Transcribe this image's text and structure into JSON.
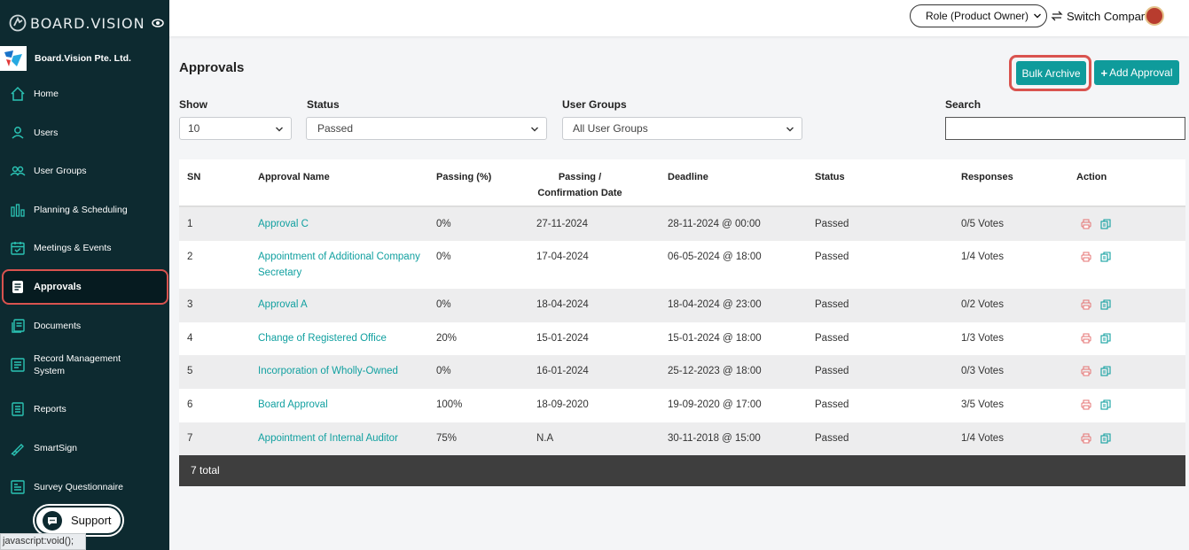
{
  "sidebar": {
    "brand": "BOARD.VISION",
    "company": "Board.Vision Pte. Ltd.",
    "items": [
      {
        "label": "Home"
      },
      {
        "label": "Users"
      },
      {
        "label": "User Groups"
      },
      {
        "label": "Planning & Scheduling"
      },
      {
        "label": "Meetings & Events"
      },
      {
        "label": "Approvals"
      },
      {
        "label": "Documents"
      },
      {
        "label": "Record Management System"
      },
      {
        "label": "Reports"
      },
      {
        "label": "SmartSign"
      },
      {
        "label": "Survey Questionnaire"
      }
    ],
    "support": "Support",
    "statusbar": "javascript:void();"
  },
  "topbar": {
    "role": "Role (Product Owner)",
    "switch_company": "Switch Company"
  },
  "page": {
    "title": "Approvals",
    "bulk_archive": "Bulk Archive",
    "add_approval": "Add Approval"
  },
  "filters": {
    "show_label": "Show",
    "show_value": "10",
    "status_label": "Status",
    "status_value": "Passed",
    "groups_label": "User Groups",
    "groups_value": "All User Groups",
    "search_label": "Search",
    "search_value": ""
  },
  "table": {
    "headers": {
      "sn": "SN",
      "name": "Approval Name",
      "passing": "Passing (%)",
      "date_line1": "Passing /",
      "date_line2": "Confirmation Date",
      "deadline": "Deadline",
      "status": "Status",
      "responses": "Responses",
      "action": "Action"
    },
    "rows": [
      {
        "sn": "1",
        "name": "Approval C",
        "passing": "0%",
        "date": "27-11-2024",
        "deadline": "28-11-2024 @ 00:00",
        "status": "Passed",
        "responses": "0/5 Votes"
      },
      {
        "sn": "2",
        "name": "Appointment of Additional Company Secretary",
        "passing": "0%",
        "date": "17-04-2024",
        "deadline": "06-05-2024 @ 18:00",
        "status": "Passed",
        "responses": "1/4 Votes"
      },
      {
        "sn": "3",
        "name": "Approval A",
        "passing": "0%",
        "date": "18-04-2024",
        "deadline": "18-04-2024 @ 23:00",
        "status": "Passed",
        "responses": "0/2 Votes"
      },
      {
        "sn": "4",
        "name": "Change of Registered Office",
        "passing": "20%",
        "date": "15-01-2024",
        "deadline": "15-01-2024 @ 18:00",
        "status": "Passed",
        "responses": "1/3 Votes"
      },
      {
        "sn": "5",
        "name": "Incorporation of Wholly-Owned",
        "passing": "0%",
        "date": "16-01-2024",
        "deadline": "25-12-2023 @ 18:00",
        "status": "Passed",
        "responses": "0/3 Votes"
      },
      {
        "sn": "6",
        "name": "Board Approval",
        "passing": "100%",
        "date": "18-09-2020",
        "deadline": "19-09-2020 @ 17:00",
        "status": "Passed",
        "responses": "3/5 Votes"
      },
      {
        "sn": "7",
        "name": "Appointment of Internal Auditor",
        "passing": "75%",
        "date": "N.A",
        "deadline": "30-11-2018 @ 15:00",
        "status": "Passed",
        "responses": "1/4 Votes"
      }
    ],
    "footer": "7 total"
  },
  "colors": {
    "accent": "#0f9b9b",
    "sidebar": "#0d2a30",
    "highlight": "#d9534f"
  }
}
